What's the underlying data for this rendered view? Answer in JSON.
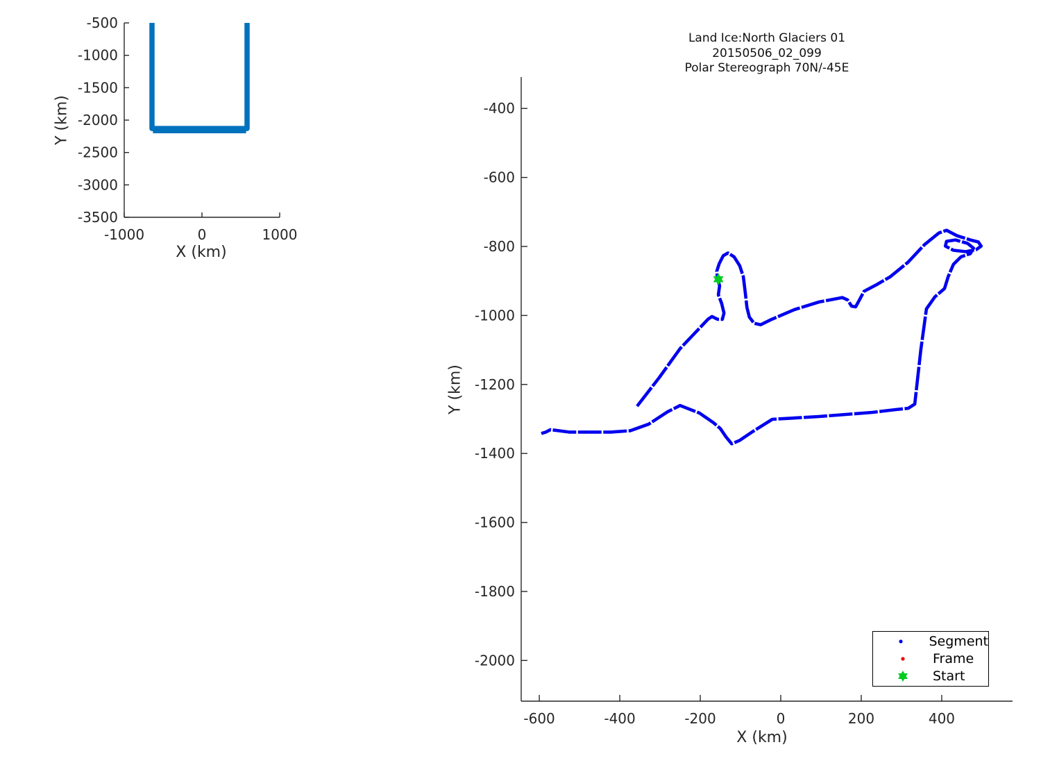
{
  "figure": {
    "background": "#ffffff"
  },
  "chart_data": [
    {
      "id": "overview-plot",
      "type": "line",
      "title": "",
      "xlabel": "X (km)",
      "ylabel": "Y (km)",
      "xticks": [
        -1000,
        0,
        1000
      ],
      "yticks": [
        -500,
        -1000,
        -1500,
        -2000,
        -2500,
        -3000,
        -3500
      ],
      "xlim": [
        -1000,
        1000
      ],
      "ylim": [
        -3500,
        -500
      ],
      "grid": false,
      "line_color": "#0072bd",
      "series": [
        {
          "name": "full-mission-track",
          "points": [
            [
              -643,
              -500
            ],
            [
              -643,
              -2130
            ],
            [
              580,
              -2130
            ],
            [
              580,
              -500
            ]
          ]
        },
        {
          "name": "full-mission-track-return",
          "points": [
            [
              -630,
              -2163
            ],
            [
              568,
              -2163
            ]
          ]
        }
      ]
    },
    {
      "id": "detail-plot",
      "type": "line",
      "title_lines": [
        "Land Ice:North Glaciers 01",
        "20150506_02_099",
        "Polar Stereograph 70N/-45E"
      ],
      "xlabel": "X (km)",
      "ylabel": "Y (km)",
      "xticks": [
        -600,
        -400,
        -200,
        0,
        200,
        400
      ],
      "yticks": [
        -400,
        -600,
        -800,
        -1000,
        -1200,
        -1400,
        -1600,
        -1800,
        -2000
      ],
      "xlim": [
        -645,
        576
      ],
      "ylim": [
        -2118,
        -309
      ],
      "grid": false,
      "line_color": "#0000ee",
      "legend_position": "lower right",
      "legend": [
        {
          "label": "Segment",
          "marker": "dot",
          "color": "#0000ee"
        },
        {
          "label": "Frame",
          "marker": "dot",
          "color": "#ee0000"
        },
        {
          "label": "Start",
          "marker": "hexagram",
          "color": "#00cc22"
        }
      ],
      "start_point": [
        -155,
        -895
      ],
      "series": [
        {
          "name": "segment-track",
          "points": [
            [
              -357,
              -1263
            ],
            [
              -302,
              -1180
            ],
            [
              -250,
              -1096
            ],
            [
              -207,
              -1043
            ],
            [
              -181,
              -1011
            ],
            [
              -171,
              -1003
            ],
            [
              -157,
              -1011
            ],
            [
              -145,
              -1011
            ],
            [
              -141,
              -993
            ],
            [
              -147,
              -965
            ],
            [
              -155,
              -940
            ],
            [
              -152,
              -914
            ],
            [
              -157,
              -895
            ],
            [
              -159,
              -872
            ],
            [
              -153,
              -850
            ],
            [
              -143,
              -827
            ],
            [
              -131,
              -819
            ],
            [
              -116,
              -830
            ],
            [
              -102,
              -856
            ],
            [
              -93,
              -888
            ],
            [
              -88,
              -936
            ],
            [
              -84,
              -977
            ],
            [
              -78,
              -1005
            ],
            [
              -66,
              -1023
            ],
            [
              -50,
              -1027
            ],
            [
              -26,
              -1013
            ],
            [
              34,
              -983
            ],
            [
              95,
              -961
            ],
            [
              153,
              -948
            ],
            [
              166,
              -955
            ],
            [
              176,
              -973
            ],
            [
              186,
              -975
            ],
            [
              197,
              -952
            ],
            [
              207,
              -930
            ],
            [
              236,
              -912
            ],
            [
              272,
              -888
            ],
            [
              316,
              -846
            ],
            [
              357,
              -795
            ],
            [
              393,
              -761
            ],
            [
              412,
              -753
            ],
            [
              438,
              -769
            ],
            [
              471,
              -781
            ],
            [
              491,
              -787
            ],
            [
              498,
              -799
            ],
            [
              486,
              -809
            ],
            [
              460,
              -815
            ],
            [
              429,
              -811
            ],
            [
              409,
              -799
            ],
            [
              412,
              -785
            ],
            [
              434,
              -781
            ],
            [
              464,
              -791
            ],
            [
              479,
              -805
            ],
            [
              471,
              -821
            ],
            [
              448,
              -830
            ],
            [
              429,
              -852
            ],
            [
              416,
              -888
            ],
            [
              407,
              -922
            ],
            [
              383,
              -946
            ],
            [
              362,
              -981
            ],
            [
              348,
              -1100
            ],
            [
              333,
              -1257
            ],
            [
              317,
              -1269
            ],
            [
              284,
              -1273
            ],
            [
              228,
              -1281
            ],
            [
              95,
              -1293
            ],
            [
              -21,
              -1301
            ],
            [
              -69,
              -1336
            ],
            [
              -102,
              -1362
            ],
            [
              -122,
              -1372
            ],
            [
              -136,
              -1352
            ],
            [
              -150,
              -1328
            ],
            [
              -167,
              -1311
            ],
            [
              -202,
              -1283
            ],
            [
              -250,
              -1261
            ],
            [
              -281,
              -1279
            ],
            [
              -328,
              -1315
            ],
            [
              -374,
              -1334
            ],
            [
              -422,
              -1338
            ],
            [
              -526,
              -1338
            ],
            [
              -572,
              -1331
            ],
            [
              -584,
              -1338
            ],
            [
              -595,
              -1342
            ]
          ]
        }
      ]
    }
  ]
}
